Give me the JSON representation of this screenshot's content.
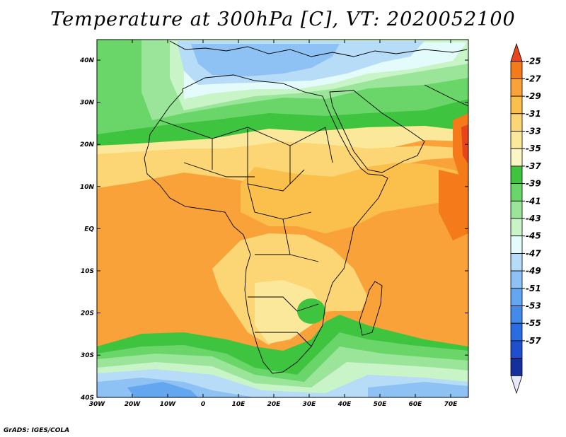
{
  "title": "Temperature at 300hPa [C], VT: 2020052100",
  "credit": "GrADS: IGES/COLA",
  "map": {
    "lon_ticks": [
      "30W",
      "20W",
      "10W",
      "0",
      "10E",
      "20E",
      "30E",
      "40E",
      "50E",
      "60E",
      "70E"
    ],
    "lat_ticks": [
      "40N",
      "30N",
      "20N",
      "10N",
      "EQ",
      "10S",
      "20S",
      "30S",
      "40S"
    ]
  },
  "colorbar": {
    "labels": [
      "-25",
      "-27",
      "-29",
      "-31",
      "-33",
      "-35",
      "-37",
      "-39",
      "-41",
      "-43",
      "-45",
      "-47",
      "-49",
      "-51",
      "-53",
      "-55",
      "-57"
    ],
    "colors": [
      "#e8451a",
      "#f47a1a",
      "#f9a23a",
      "#fbbf4c",
      "#fcd674",
      "#fce89a",
      "#fbf6c4",
      "#3ec43e",
      "#6ad66a",
      "#9ae59a",
      "#c8f4c8",
      "#e4fbfb",
      "#b6dcf8",
      "#8ec2f4",
      "#64a6ef",
      "#428bea",
      "#2b6ce3",
      "#1f4fce",
      "#15309c",
      "#e8e8fb"
    ]
  }
}
